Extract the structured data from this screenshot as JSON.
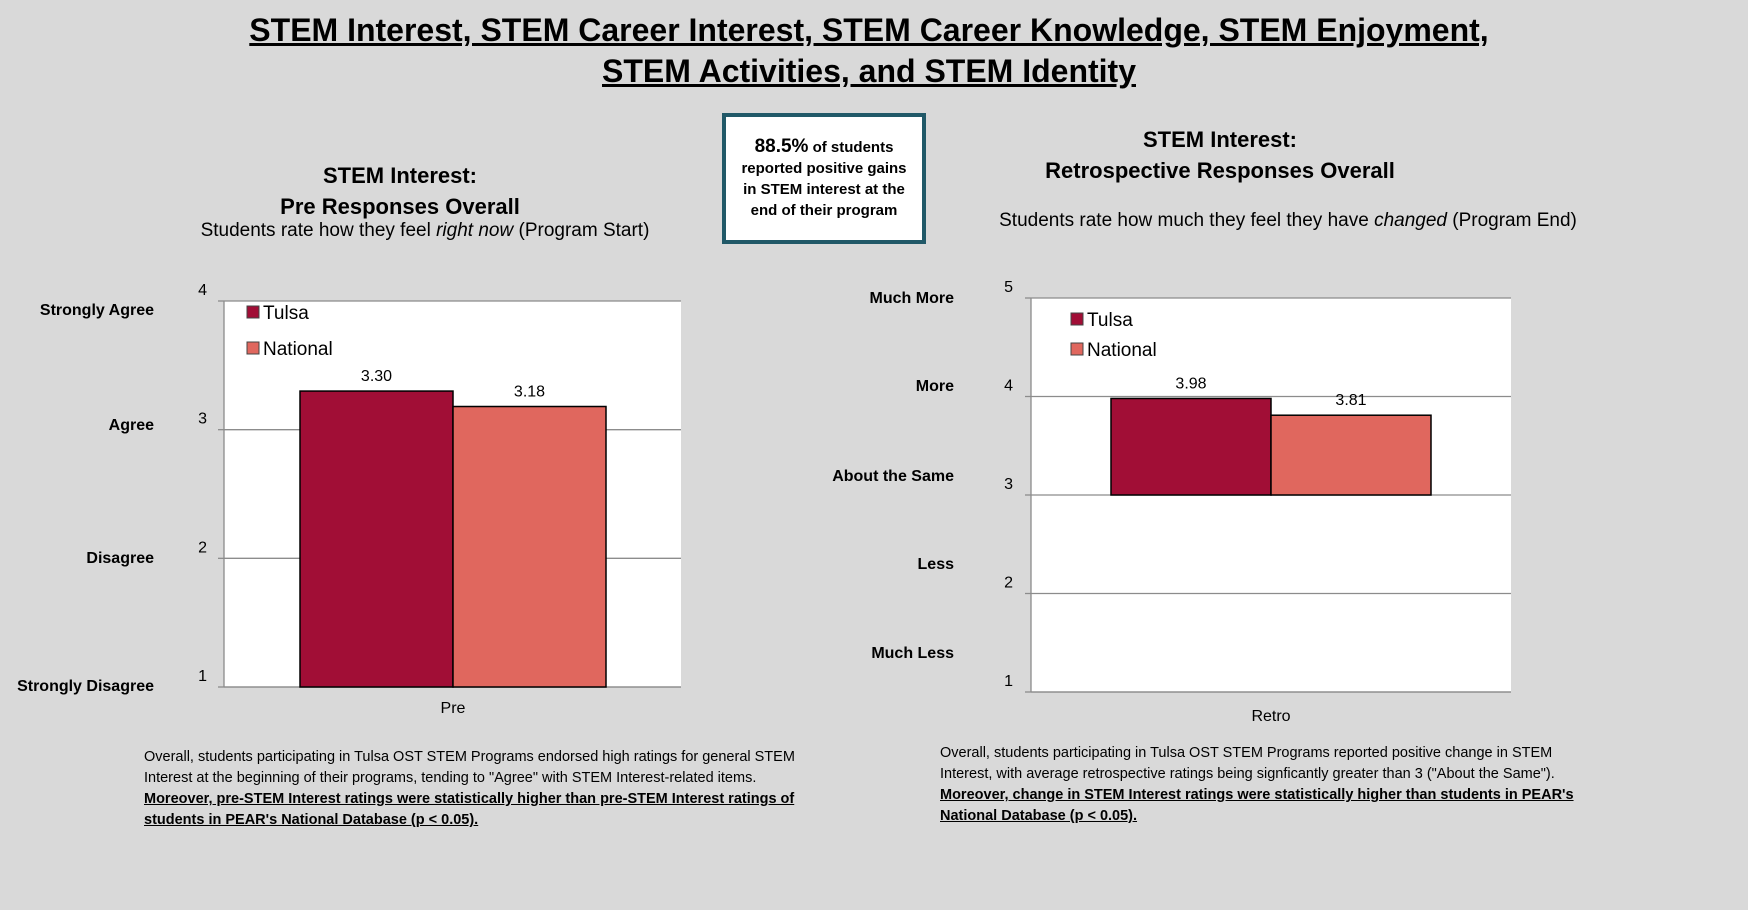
{
  "page": {
    "title_line1": "STEM Interest, STEM Career Interest, STEM Career Knowledge, STEM Enjoyment,",
    "title_line2": "STEM Activities, and STEM Identity"
  },
  "callout": {
    "percent": "88.5%",
    "text": " of students reported positive gains in STEM interest at the end of their program"
  },
  "colors": {
    "tulsa": "#a10e36",
    "national": "#e0675e",
    "callout_border": "#215968"
  },
  "left": {
    "title_line1": "STEM Interest:",
    "title_line2": "Pre Responses Overall",
    "subtitle_a": "Students rate how they feel ",
    "subtitle_em": "right now",
    "subtitle_b": " (Program Start)",
    "scale_labels": [
      "Strongly Agree",
      "Agree",
      "Disagree",
      "Strongly Disagree"
    ],
    "note_plain": "Overall, students participating in Tulsa OST STEM  Programs endorsed high ratings for general STEM  Interest at the beginning of their programs, tending to \"Agree\" with STEM Interest-related items. ",
    "note_strong": "Moreover, pre-STEM Interest ratings were statistically higher than pre-STEM Interest ratings of students in PEAR's National Database  (p < 0.05)."
  },
  "right": {
    "title_line1": "STEM Interest:",
    "title_line2": "Retrospective Responses Overall",
    "subtitle_a": "Students rate how much they feel  they have ",
    "subtitle_em": "changed",
    "subtitle_b": " (Program End)",
    "scale_labels": [
      "Much More",
      "More",
      "About the Same",
      "Less",
      "Much Less"
    ],
    "note_plain": "Overall, students participating in Tulsa OST STEM  Programs reported positive change in STEM Interest, with average  retrospective ratings being signficantly greater than 3 (\"About the Same\").  ",
    "note_strong": "Moreover, change in STEM Interest ratings were statistically higher than students in PEAR's National Database  (p < 0.05)."
  },
  "chart_data": [
    {
      "type": "bar",
      "categories": [
        "Pre"
      ],
      "series": [
        {
          "name": "Tulsa",
          "values": [
            3.3
          ],
          "label": "3.30"
        },
        {
          "name": "National",
          "values": [
            3.18
          ],
          "label": "3.18"
        }
      ],
      "ylim": [
        1,
        4
      ],
      "yticks": [
        "1",
        "2",
        "3",
        "4"
      ],
      "baseline": 1,
      "grid": true,
      "legend": "top-left"
    },
    {
      "type": "bar",
      "categories": [
        "Retro"
      ],
      "series": [
        {
          "name": "Tulsa",
          "values": [
            3.98
          ],
          "label": "3.98"
        },
        {
          "name": "National",
          "values": [
            3.81
          ],
          "label": "3.81"
        }
      ],
      "ylim": [
        1,
        5
      ],
      "yticks": [
        "1",
        "2",
        "3",
        "4",
        "5"
      ],
      "baseline": 3,
      "grid": true,
      "legend": "top-left"
    }
  ]
}
